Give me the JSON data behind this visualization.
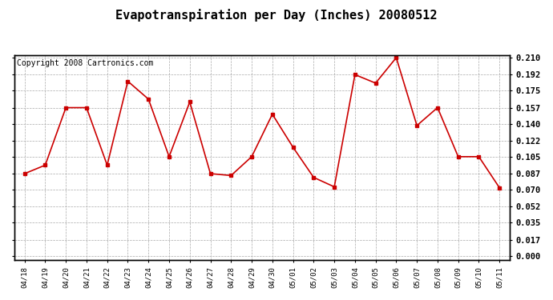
{
  "title": "Evapotranspiration per Day (Inches) 20080512",
  "copyright_text": "Copyright 2008 Cartronics.com",
  "dates": [
    "04/18",
    "04/19",
    "04/20",
    "04/21",
    "04/22",
    "04/23",
    "04/24",
    "04/25",
    "04/26",
    "04/27",
    "04/28",
    "04/29",
    "04/30",
    "05/01",
    "05/02",
    "05/03",
    "05/04",
    "05/05",
    "05/06",
    "05/07",
    "05/08",
    "05/09",
    "05/10",
    "05/11"
  ],
  "values": [
    0.087,
    0.096,
    0.157,
    0.157,
    0.096,
    0.185,
    0.166,
    0.105,
    0.163,
    0.087,
    0.085,
    0.105,
    0.15,
    0.115,
    0.083,
    0.073,
    0.192,
    0.183,
    0.21,
    0.138,
    0.157,
    0.105,
    0.105,
    0.072
  ],
  "line_color": "#cc0000",
  "marker": "s",
  "markersize": 3,
  "bg_color": "#ffffff",
  "plot_bg_color": "#ffffff",
  "grid_color": "#aaaaaa",
  "yticks": [
    0.0,
    0.017,
    0.035,
    0.052,
    0.07,
    0.087,
    0.105,
    0.122,
    0.14,
    0.157,
    0.175,
    0.192,
    0.21
  ],
  "ylim_min": 0.0,
  "ylim_max": 0.21,
  "title_fontsize": 11,
  "copyright_fontsize": 7,
  "tick_fontsize": 7.5,
  "xtick_fontsize": 6.5
}
